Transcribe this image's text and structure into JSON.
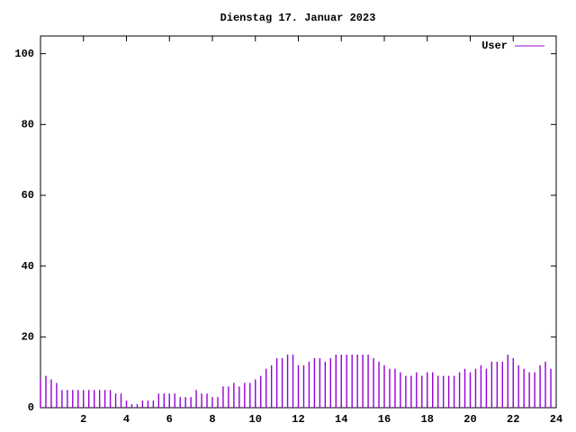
{
  "chart_data": {
    "type": "impulse",
    "title": "Dienstag 17. Januar 2023",
    "xlim": [
      0,
      24
    ],
    "xticks": [
      2,
      4,
      6,
      8,
      10,
      12,
      14,
      16,
      18,
      20,
      22,
      24
    ],
    "ylim": [
      0,
      105
    ],
    "yticks": [
      0,
      20,
      40,
      60,
      80,
      100
    ],
    "legend": "top-right",
    "x": [
      0,
      0.25,
      0.5,
      0.75,
      1,
      1.25,
      1.5,
      1.75,
      2,
      2.25,
      2.5,
      2.75,
      3,
      3.25,
      3.5,
      3.75,
      4,
      4.25,
      4.5,
      4.75,
      5,
      5.25,
      5.5,
      5.75,
      6,
      6.25,
      6.5,
      6.75,
      7,
      7.25,
      7.5,
      7.75,
      8,
      8.25,
      8.5,
      8.75,
      9,
      9.25,
      9.5,
      9.75,
      10,
      10.25,
      10.5,
      10.75,
      11,
      11.25,
      11.5,
      11.75,
      12,
      12.25,
      12.5,
      12.75,
      13,
      13.25,
      13.5,
      13.75,
      14,
      14.25,
      14.5,
      14.75,
      15,
      15.25,
      15.5,
      15.75,
      16,
      16.25,
      16.5,
      16.75,
      17,
      17.25,
      17.5,
      17.75,
      18,
      18.25,
      18.5,
      18.75,
      19,
      19.25,
      19.5,
      19.75,
      20,
      20.25,
      20.5,
      20.75,
      21,
      21.25,
      21.5,
      21.75,
      22,
      22.25,
      22.5,
      22.75,
      23,
      23.25,
      23.5,
      23.75
    ],
    "series": [
      {
        "name": "User",
        "color": "#9400d3",
        "values": [
          8,
          9,
          8,
          7,
          5,
          5,
          5,
          5,
          5,
          5,
          5,
          5,
          5,
          5,
          4,
          4,
          2,
          1,
          1,
          2,
          2,
          2,
          4,
          4,
          4,
          4,
          3,
          3,
          3,
          5,
          4,
          4,
          3,
          3,
          6,
          6,
          7,
          6,
          7,
          7,
          8,
          9,
          11,
          12,
          14,
          14,
          15,
          15,
          12,
          12,
          13,
          14,
          14,
          13,
          14,
          15,
          15,
          15,
          15,
          15,
          15,
          15,
          14,
          13,
          12,
          11,
          11,
          10,
          9,
          9,
          10,
          9,
          10,
          10,
          9,
          9,
          9,
          9,
          10,
          11,
          10,
          11,
          12,
          11,
          13,
          13,
          13,
          15,
          14,
          12,
          11,
          10,
          10,
          12,
          13,
          11
        ]
      }
    ]
  }
}
